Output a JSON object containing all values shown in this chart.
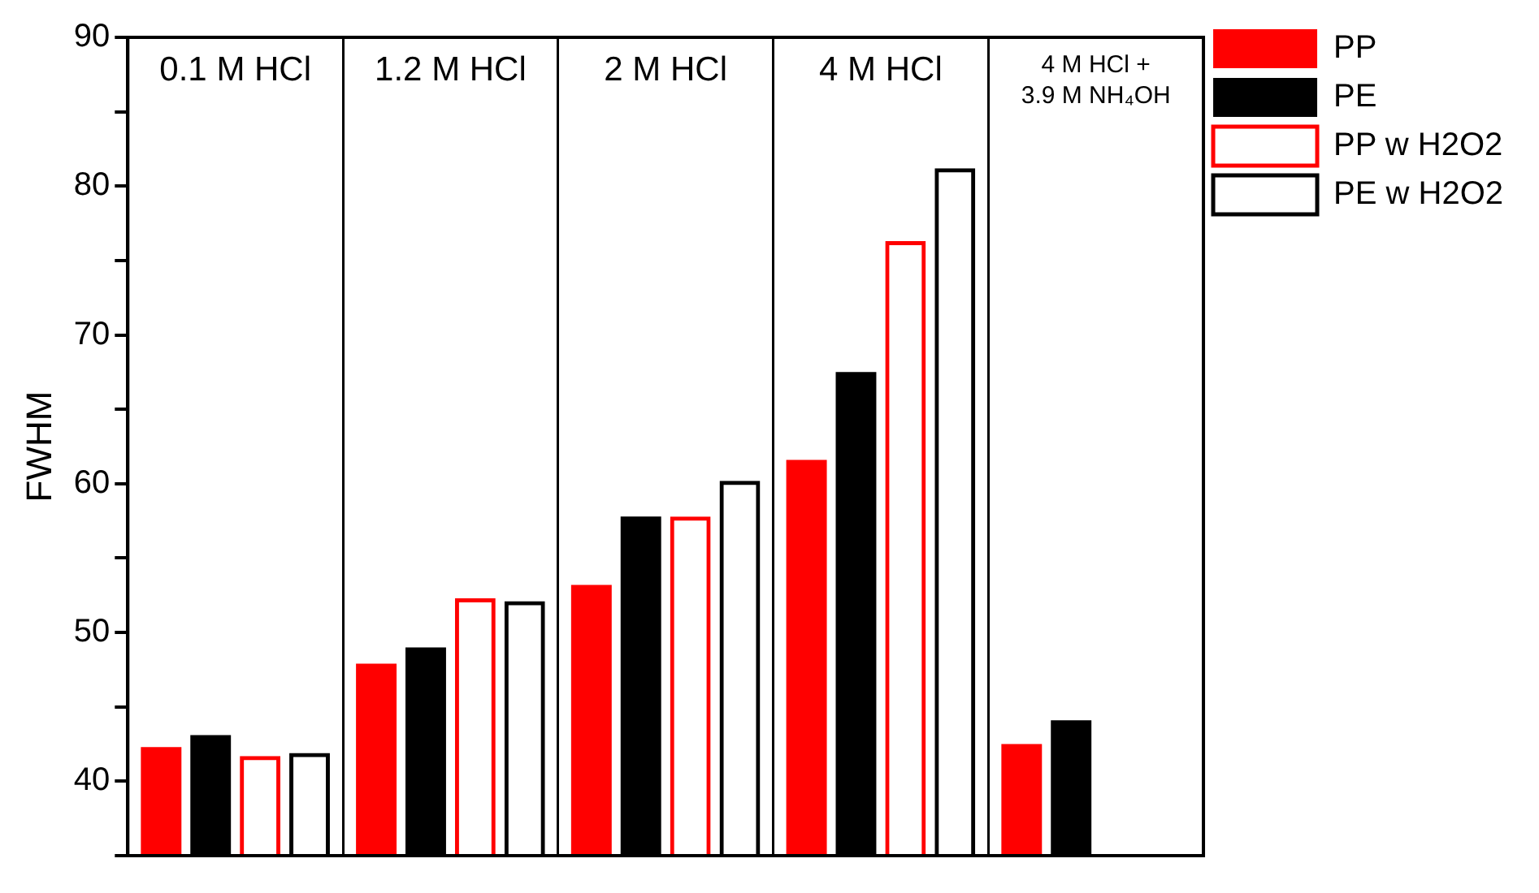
{
  "chart_data": {
    "type": "bar",
    "ylabel": "FWHM",
    "categories": [
      "0.1 M HCl",
      "1.2 M HCl",
      "2 M HCl",
      "4 M HCl",
      "4 M HCl +\n3.9 M NH₄OH"
    ],
    "series": [
      {
        "name": "PP",
        "color": "#ff0000",
        "values": [
          42.3,
          47.9,
          53.2,
          61.6,
          42.5
        ]
      },
      {
        "name": "PE",
        "color": "#000000",
        "values": [
          43.1,
          49.0,
          57.8,
          67.5,
          44.1
        ]
      },
      {
        "name": "PP w H2O2",
        "color": "#ff0000",
        "values": [
          41.7,
          52.3,
          57.8,
          76.3,
          null
        ]
      },
      {
        "name": "PE w H2O2",
        "color": "#000000",
        "values": [
          41.9,
          52.1,
          60.2,
          81.2,
          null
        ]
      }
    ],
    "ylim": [
      35,
      90
    ],
    "yticks": [
      {
        "value": 35,
        "label": null
      },
      40,
      {
        "value": 45,
        "label": null
      },
      50,
      {
        "value": 55,
        "label": null
      },
      60,
      {
        "value": 65,
        "label": null
      },
      70,
      {
        "value": 75,
        "label": null
      },
      80,
      {
        "value": 85,
        "label": null
      },
      90
    ],
    "grid": "x",
    "legend": "right"
  }
}
